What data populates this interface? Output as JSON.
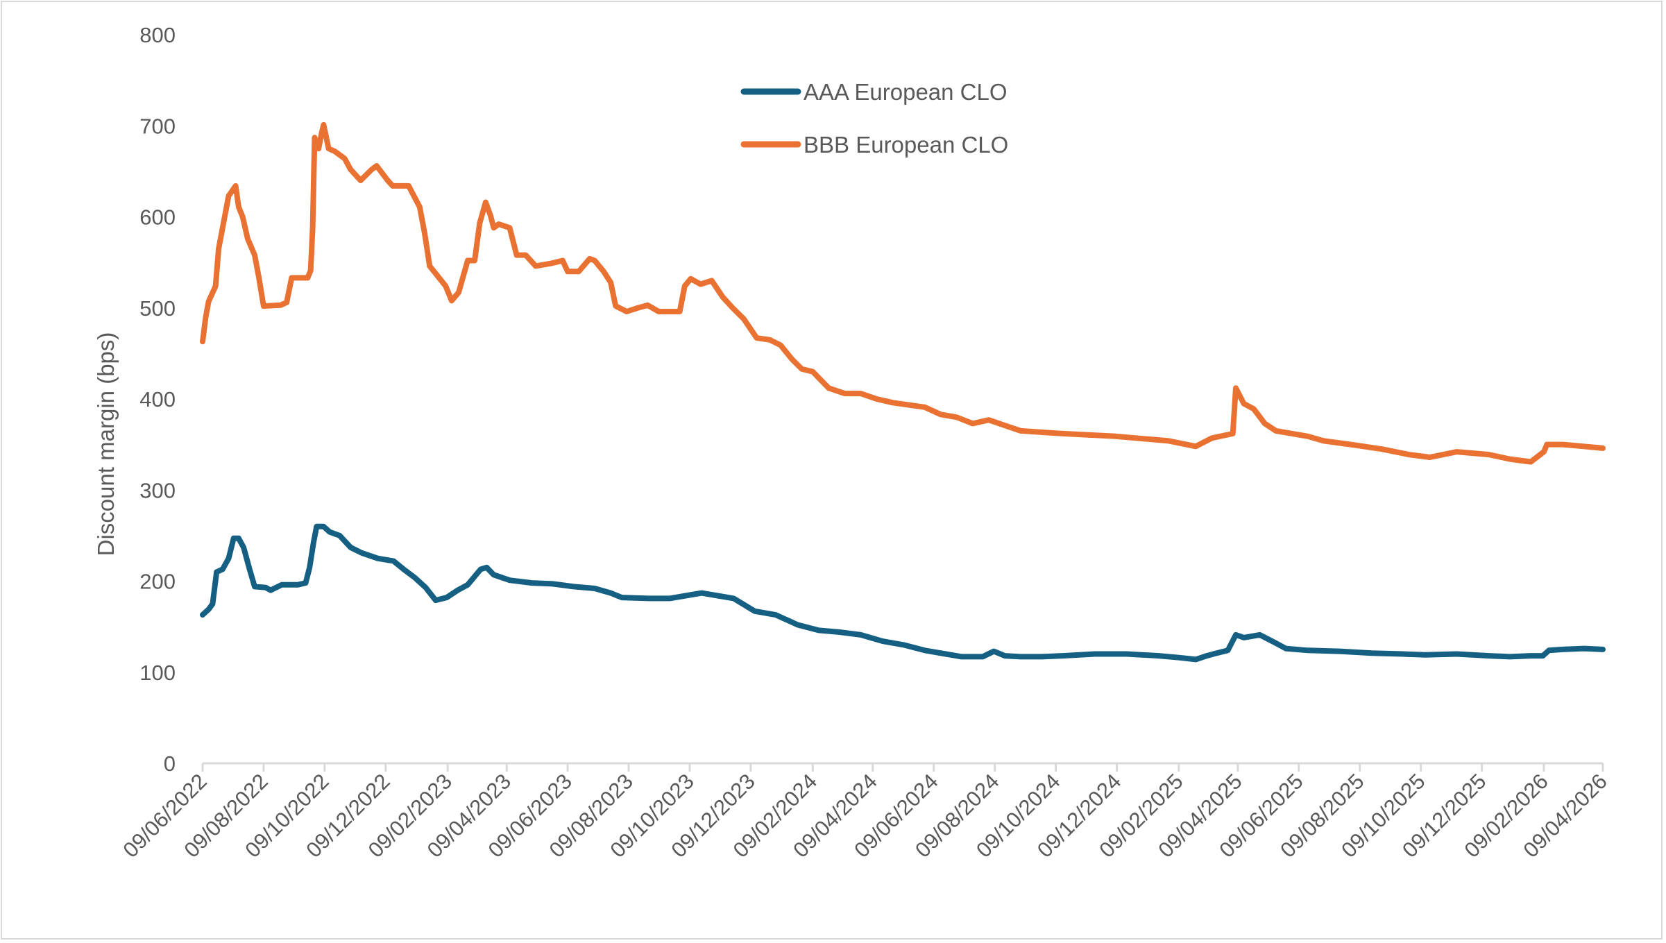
{
  "chart_data": {
    "type": "line",
    "title": "",
    "xlabel": "",
    "ylabel": "Discount margin (bps)",
    "ylim": [
      0,
      800
    ],
    "yticks": [
      "0",
      "100",
      "200",
      "300",
      "400",
      "500",
      "600",
      "700",
      "800"
    ],
    "grid": false,
    "legend_position": "top-center",
    "x_unit": "days since 09/06/2022",
    "xlim": [
      0,
      1400
    ],
    "xticks": [
      {
        "day": 0,
        "label": "09/06/2022"
      },
      {
        "day": 61,
        "label": "09/08/2022"
      },
      {
        "day": 122,
        "label": "09/10/2022"
      },
      {
        "day": 183,
        "label": "09/12/2022"
      },
      {
        "day": 245,
        "label": "09/02/2023"
      },
      {
        "day": 304,
        "label": "09/04/2023"
      },
      {
        "day": 365,
        "label": "09/06/2023"
      },
      {
        "day": 426,
        "label": "09/08/2023"
      },
      {
        "day": 487,
        "label": "09/10/2023"
      },
      {
        "day": 548,
        "label": "09/12/2023"
      },
      {
        "day": 610,
        "label": "09/02/2024"
      },
      {
        "day": 670,
        "label": "09/04/2024"
      },
      {
        "day": 731,
        "label": "09/06/2024"
      },
      {
        "day": 792,
        "label": "09/08/2024"
      },
      {
        "day": 853,
        "label": "09/10/2024"
      },
      {
        "day": 914,
        "label": "09/12/2024"
      },
      {
        "day": 976,
        "label": "09/02/2025"
      },
      {
        "day": 1035,
        "label": "09/04/2025"
      },
      {
        "day": 1096,
        "label": "09/06/2025"
      },
      {
        "day": 1157,
        "label": "09/08/2025"
      },
      {
        "day": 1218,
        "label": "09/10/2025"
      },
      {
        "day": 1279,
        "label": "09/12/2025"
      },
      {
        "day": 1341,
        "label": "09/02/2026"
      },
      {
        "day": 1400,
        "label": "09/04/2026"
      }
    ],
    "series": [
      {
        "name": "AAA European CLO",
        "color": "#156082",
        "points": [
          [
            0,
            163
          ],
          [
            6,
            169
          ],
          [
            10,
            175
          ],
          [
            14,
            210
          ],
          [
            20,
            213
          ],
          [
            26,
            225
          ],
          [
            31,
            247
          ],
          [
            36,
            247
          ],
          [
            41,
            237
          ],
          [
            47,
            213
          ],
          [
            52,
            194
          ],
          [
            63,
            193
          ],
          [
            68,
            190
          ],
          [
            79,
            196
          ],
          [
            95,
            196
          ],
          [
            103,
            198
          ],
          [
            107,
            215
          ],
          [
            111,
            243
          ],
          [
            114,
            260
          ],
          [
            121,
            260
          ],
          [
            127,
            254
          ],
          [
            137,
            250
          ],
          [
            148,
            237
          ],
          [
            159,
            231
          ],
          [
            175,
            225
          ],
          [
            191,
            222
          ],
          [
            201,
            213
          ],
          [
            212,
            204
          ],
          [
            223,
            193
          ],
          [
            233,
            179
          ],
          [
            244,
            182
          ],
          [
            255,
            190
          ],
          [
            265,
            196
          ],
          [
            278,
            213
          ],
          [
            284,
            215
          ],
          [
            291,
            207
          ],
          [
            307,
            201
          ],
          [
            329,
            198
          ],
          [
            350,
            197
          ],
          [
            371,
            194
          ],
          [
            392,
            192
          ],
          [
            408,
            187
          ],
          [
            419,
            182
          ],
          [
            446,
            181
          ],
          [
            467,
            181
          ],
          [
            483,
            184
          ],
          [
            499,
            187
          ],
          [
            515,
            184
          ],
          [
            531,
            181
          ],
          [
            552,
            167
          ],
          [
            573,
            163
          ],
          [
            595,
            152
          ],
          [
            616,
            146
          ],
          [
            637,
            144
          ],
          [
            658,
            141
          ],
          [
            680,
            134
          ],
          [
            701,
            130
          ],
          [
            722,
            124
          ],
          [
            743,
            120
          ],
          [
            759,
            117
          ],
          [
            780,
            117
          ],
          [
            791,
            123
          ],
          [
            802,
            118
          ],
          [
            818,
            117
          ],
          [
            839,
            117
          ],
          [
            860,
            118
          ],
          [
            892,
            120
          ],
          [
            924,
            120
          ],
          [
            956,
            118
          ],
          [
            977,
            116
          ],
          [
            993,
            114
          ],
          [
            1004,
            118
          ],
          [
            1014,
            121
          ],
          [
            1025,
            124
          ],
          [
            1033,
            141
          ],
          [
            1041,
            138
          ],
          [
            1057,
            141
          ],
          [
            1073,
            132
          ],
          [
            1083,
            126
          ],
          [
            1105,
            124
          ],
          [
            1137,
            123
          ],
          [
            1169,
            121
          ],
          [
            1200,
            120
          ],
          [
            1222,
            119
          ],
          [
            1254,
            120
          ],
          [
            1286,
            118
          ],
          [
            1307,
            117
          ],
          [
            1328,
            118
          ],
          [
            1340,
            118
          ],
          [
            1346,
            124
          ],
          [
            1360,
            125
          ],
          [
            1381,
            126
          ],
          [
            1400,
            125
          ]
        ]
      },
      {
        "name": "BBB European CLO",
        "color": "#E97132",
        "points": [
          [
            0,
            463
          ],
          [
            3,
            489
          ],
          [
            6,
            507
          ],
          [
            13,
            524
          ],
          [
            16,
            565
          ],
          [
            20,
            588
          ],
          [
            26,
            623
          ],
          [
            33,
            634
          ],
          [
            36,
            611
          ],
          [
            40,
            600
          ],
          [
            45,
            576
          ],
          [
            52,
            558
          ],
          [
            56,
            535
          ],
          [
            61,
            502
          ],
          [
            78,
            503
          ],
          [
            84,
            506
          ],
          [
            89,
            533
          ],
          [
            105,
            533
          ],
          [
            108,
            541
          ],
          [
            110,
            588
          ],
          [
            112,
            687
          ],
          [
            116,
            675
          ],
          [
            119,
            692
          ],
          [
            121,
            701
          ],
          [
            126,
            675
          ],
          [
            132,
            672
          ],
          [
            142,
            664
          ],
          [
            148,
            652
          ],
          [
            158,
            640
          ],
          [
            169,
            652
          ],
          [
            174,
            656
          ],
          [
            185,
            640
          ],
          [
            190,
            634
          ],
          [
            206,
            634
          ],
          [
            217,
            611
          ],
          [
            222,
            582
          ],
          [
            227,
            546
          ],
          [
            235,
            535
          ],
          [
            243,
            524
          ],
          [
            249,
            508
          ],
          [
            256,
            517
          ],
          [
            265,
            552
          ],
          [
            272,
            552
          ],
          [
            277,
            593
          ],
          [
            283,
            616
          ],
          [
            288,
            601
          ],
          [
            291,
            588
          ],
          [
            296,
            592
          ],
          [
            307,
            588
          ],
          [
            314,
            558
          ],
          [
            323,
            558
          ],
          [
            333,
            546
          ],
          [
            349,
            549
          ],
          [
            360,
            552
          ],
          [
            365,
            540
          ],
          [
            376,
            540
          ],
          [
            387,
            554
          ],
          [
            392,
            552
          ],
          [
            401,
            540
          ],
          [
            408,
            528
          ],
          [
            413,
            502
          ],
          [
            424,
            496
          ],
          [
            435,
            500
          ],
          [
            445,
            503
          ],
          [
            456,
            496
          ],
          [
            477,
            496
          ],
          [
            482,
            524
          ],
          [
            488,
            532
          ],
          [
            498,
            526
          ],
          [
            509,
            530
          ],
          [
            520,
            512
          ],
          [
            530,
            500
          ],
          [
            541,
            488
          ],
          [
            554,
            467
          ],
          [
            567,
            465
          ],
          [
            578,
            459
          ],
          [
            589,
            444
          ],
          [
            599,
            433
          ],
          [
            610,
            430
          ],
          [
            626,
            412
          ],
          [
            642,
            406
          ],
          [
            658,
            406
          ],
          [
            674,
            400
          ],
          [
            690,
            396
          ],
          [
            722,
            391
          ],
          [
            738,
            383
          ],
          [
            754,
            380
          ],
          [
            770,
            373
          ],
          [
            786,
            377
          ],
          [
            802,
            371
          ],
          [
            818,
            365
          ],
          [
            860,
            362
          ],
          [
            913,
            359
          ],
          [
            966,
            354
          ],
          [
            993,
            348
          ],
          [
            1009,
            357
          ],
          [
            1030,
            362
          ],
          [
            1033,
            412
          ],
          [
            1041,
            395
          ],
          [
            1051,
            389
          ],
          [
            1062,
            373
          ],
          [
            1073,
            365
          ],
          [
            1105,
            359
          ],
          [
            1121,
            354
          ],
          [
            1148,
            350
          ],
          [
            1179,
            345
          ],
          [
            1206,
            339
          ],
          [
            1227,
            336
          ],
          [
            1254,
            342
          ],
          [
            1286,
            339
          ],
          [
            1307,
            334
          ],
          [
            1328,
            331
          ],
          [
            1341,
            342
          ],
          [
            1344,
            350
          ],
          [
            1360,
            350
          ],
          [
            1381,
            348
          ],
          [
            1400,
            346
          ]
        ]
      }
    ]
  }
}
